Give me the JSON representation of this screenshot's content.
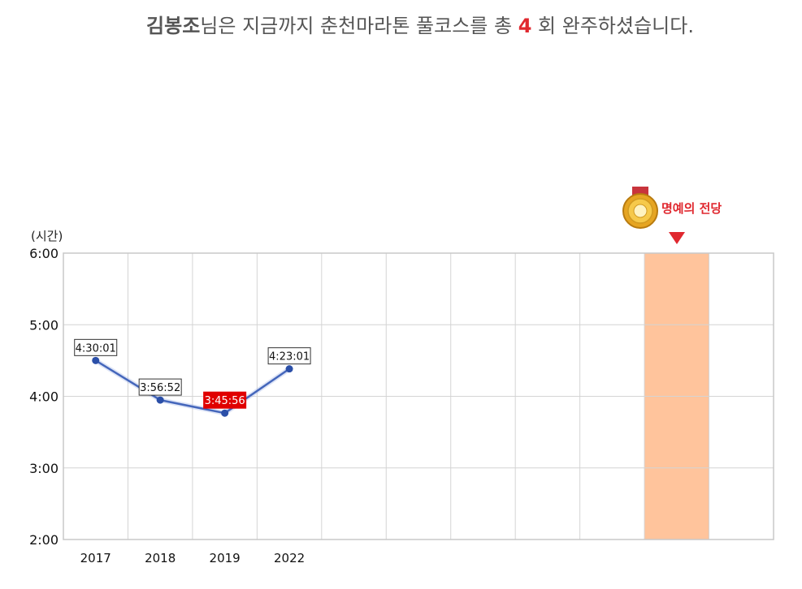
{
  "headline": {
    "name": "김봉조",
    "text_before_count": "님은 지금까지 춘천마라톤 풀코스를 총 ",
    "count": "4",
    "text_after_count": " 회 완주하셨습니다."
  },
  "hall_of_fame": {
    "label": "명예의 전당",
    "medal_icon": "gold-medal-icon",
    "arrow_icon": "down-triangle-icon",
    "highlight_color": "#ffc49c"
  },
  "colors": {
    "line": "#4466bb",
    "best_label_bg": "#e00000",
    "accent": "#e0282f"
  },
  "chart_data": {
    "type": "line",
    "unit_label": "(시간)",
    "y_ticks": [
      "2:00",
      "3:00",
      "4:00",
      "5:00",
      "6:00"
    ],
    "ylim": [
      "2:00",
      "6:00"
    ],
    "grid": true,
    "x": [
      "2017",
      "2018",
      "2019",
      "2022"
    ],
    "series": [
      {
        "values": [
          "4:30:01",
          "3:56:52",
          "3:45:56",
          "4:23:01"
        ],
        "best": "3:45:56"
      }
    ],
    "empty_columns": 7,
    "highlight_column": 10
  }
}
